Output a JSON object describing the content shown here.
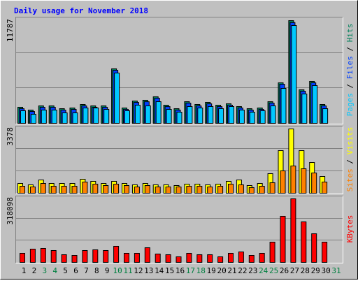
{
  "chart_data": [
    {
      "type": "bar",
      "title": "Daily usage for November 2018",
      "categories": [
        "1",
        "2",
        "3",
        "4",
        "5",
        "6",
        "7",
        "8",
        "9",
        "10",
        "11",
        "12",
        "13",
        "14",
        "15",
        "16",
        "17",
        "18",
        "19",
        "20",
        "21",
        "22",
        "23",
        "24",
        "25",
        "26",
        "27",
        "28",
        "29",
        "30",
        "31"
      ],
      "weekend": [
        2,
        3,
        9,
        10,
        16,
        17,
        23,
        24,
        30
      ],
      "weekend_color": "#008040",
      "weekday_color": "#000000",
      "legend_separator": " / ",
      "ylim": [
        0,
        11787
      ],
      "yticks": [
        11787
      ],
      "series": [
        {
          "name": "Hits",
          "color": "#00805c",
          "values": [
            1845,
            1524,
            2005,
            2005,
            1684,
            1764,
            2165,
            2005,
            2005,
            6256,
            1764,
            2566,
            2647,
            3048,
            2085,
            1684,
            2486,
            2165,
            2406,
            2085,
            2246,
            1925,
            1684,
            1764,
            2486,
            4652,
            11787,
            3850,
            4812,
            2165,
            null
          ]
        },
        {
          "name": "Files",
          "color": "#0040ff",
          "values": [
            1680,
            1360,
            1840,
            1840,
            1520,
            1600,
            2000,
            1840,
            1840,
            6090,
            1600,
            2400,
            2480,
            2890,
            1920,
            1520,
            2320,
            2000,
            2240,
            1920,
            2080,
            1760,
            1520,
            1600,
            2320,
            4490,
            11560,
            3690,
            4650,
            2000,
            null
          ]
        },
        {
          "name": "Pages",
          "color": "#00c8ff",
          "values": [
            1444,
            1043,
            1524,
            1524,
            1203,
            1203,
            1764,
            1764,
            1604,
            5774,
            1444,
            2085,
            2005,
            2486,
            1604,
            1283,
            1925,
            1764,
            1925,
            1684,
            1925,
            1524,
            1283,
            1444,
            2005,
            4010,
            11228,
            3368,
            4331,
            1684,
            null
          ]
        }
      ]
    },
    {
      "type": "bar",
      "ylim": [
        0,
        3378
      ],
      "yticks": [
        3378
      ],
      "series": [
        {
          "name": "Visits",
          "color": "#ffff00",
          "values": [
            514,
            440,
            697,
            514,
            514,
            514,
            734,
            624,
            514,
            624,
            514,
            440,
            514,
            440,
            440,
            404,
            477,
            477,
            440,
            477,
            624,
            697,
            404,
            514,
            1028,
            2239,
            3378,
            2239,
            1615,
            881,
            null
          ]
        },
        {
          "name": "Sites",
          "color": "#ff8000",
          "values": [
            367,
            330,
            514,
            367,
            367,
            367,
            587,
            477,
            404,
            477,
            404,
            330,
            404,
            330,
            330,
            330,
            367,
            367,
            330,
            367,
            477,
            440,
            294,
            367,
            551,
            1174,
            1431,
            1285,
            1064,
            587,
            null
          ]
        }
      ]
    },
    {
      "type": "bar",
      "ylim": [
        0,
        318098
      ],
      "yticks": [
        318098
      ],
      "series": [
        {
          "name": "KBytes",
          "color": "#ff0000",
          "values": [
            45448,
            66424,
            69920,
            59432,
            38456,
            34960,
            59432,
            62928,
            59432,
            80408,
            45448,
            45448,
            73416,
            41952,
            38456,
            27968,
            45448,
            38456,
            38456,
            27968,
            45448,
            52440,
            34960,
            45448,
            101384,
            230736,
            318098,
            202768,
            143336,
            101384,
            null
          ]
        }
      ]
    }
  ]
}
